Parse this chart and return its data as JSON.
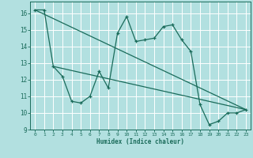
{
  "xlabel": "Humidex (Indice chaleur)",
  "background_color": "#b2e0e0",
  "grid_color": "#ffffff",
  "line_color": "#1a6b5a",
  "xlim": [
    -0.5,
    23.5
  ],
  "ylim": [
    9.0,
    16.7
  ],
  "yticks": [
    9,
    10,
    11,
    12,
    13,
    14,
    15,
    16
  ],
  "xticks": [
    0,
    1,
    2,
    3,
    4,
    5,
    6,
    7,
    8,
    9,
    10,
    11,
    12,
    13,
    14,
    15,
    16,
    17,
    18,
    19,
    20,
    21,
    22,
    23
  ],
  "series1_x": [
    0,
    1,
    2,
    3,
    4,
    5,
    6,
    7,
    8,
    9,
    10,
    11,
    12,
    13,
    14,
    15,
    16,
    17,
    18,
    19,
    20,
    21,
    22,
    23
  ],
  "series1_y": [
    16.2,
    16.2,
    12.8,
    12.2,
    10.7,
    10.6,
    11.0,
    12.5,
    11.5,
    14.8,
    15.8,
    14.3,
    14.4,
    14.5,
    15.2,
    15.3,
    14.4,
    13.7,
    10.5,
    9.3,
    9.5,
    10.0,
    10.0,
    10.2
  ],
  "series2_x": [
    0,
    23
  ],
  "series2_y": [
    16.2,
    10.2
  ],
  "series3_x": [
    2,
    23
  ],
  "series3_y": [
    12.8,
    10.2
  ]
}
